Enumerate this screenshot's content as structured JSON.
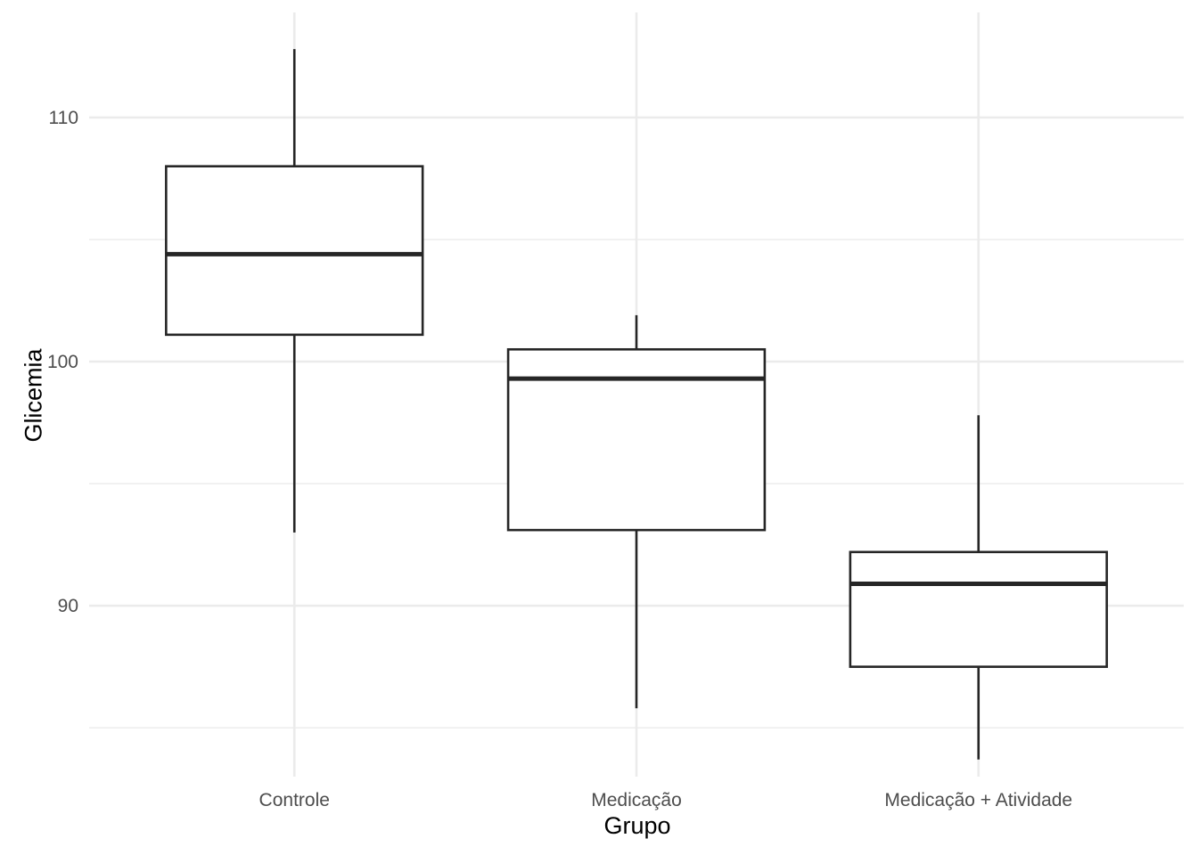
{
  "chart_data": {
    "type": "boxplot",
    "xlabel": "Grupo",
    "ylabel": "Glicemia",
    "categories": [
      "Controle",
      "Medicação",
      "Medicação + Atividade"
    ],
    "boxes": [
      {
        "category": "Controle",
        "whisker_low": 93.0,
        "q1": 101.1,
        "median": 104.4,
        "q3": 108.0,
        "whisker_high": 112.8
      },
      {
        "category": "Medicação",
        "whisker_low": 85.8,
        "q1": 93.1,
        "median": 99.3,
        "q3": 100.5,
        "whisker_high": 101.9
      },
      {
        "category": "Medicação + Atividade",
        "whisker_low": 83.7,
        "q1": 87.5,
        "median": 90.9,
        "q3": 92.2,
        "whisker_high": 97.8
      }
    ],
    "y_ticks": [
      90,
      100,
      110
    ],
    "ylim": [
      83.0,
      114.3
    ],
    "grid": true,
    "colors": {
      "box_line": "#262626",
      "box_fill": "#ffffff",
      "grid": "#ebebeb",
      "tick_text": "#4d4d4d"
    }
  }
}
